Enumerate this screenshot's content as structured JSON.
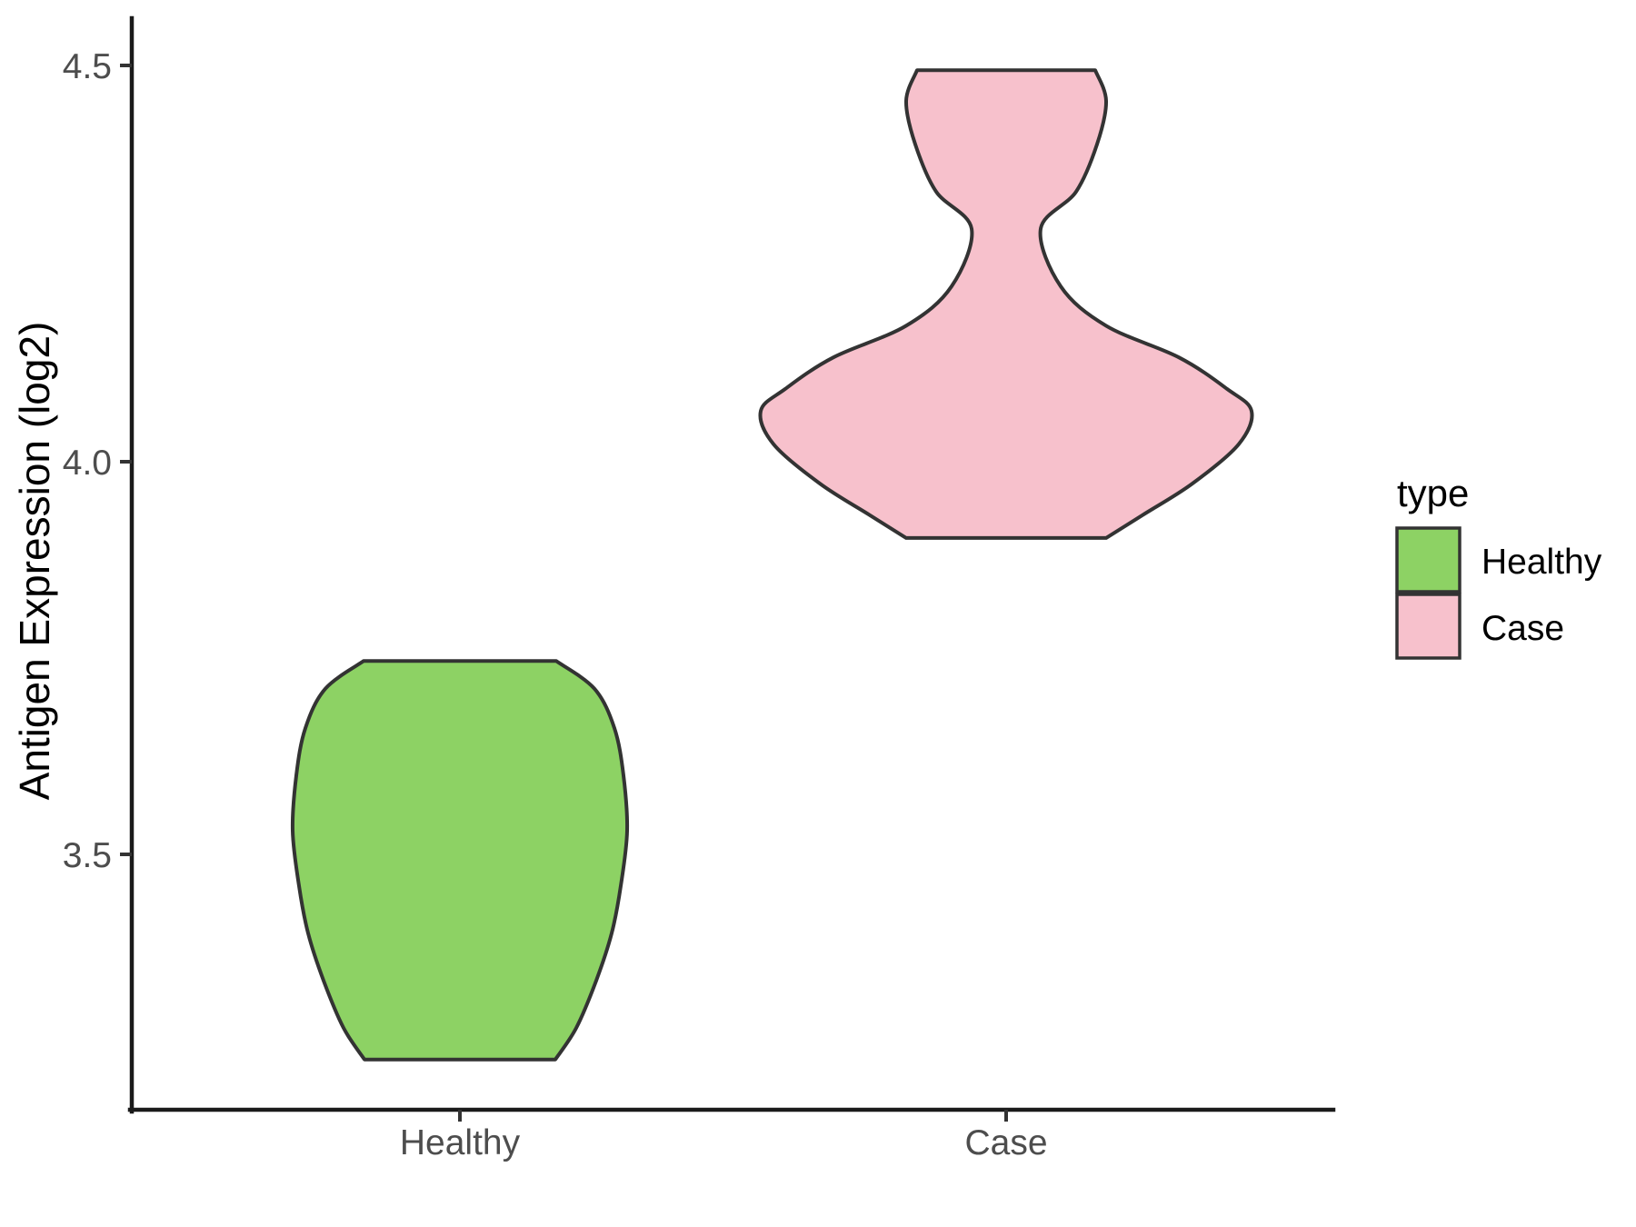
{
  "figure": {
    "background": "#ffffff",
    "y_axis": {
      "title": "Antigen Expression (log2)",
      "ticks": [
        "4.5",
        "4.0",
        "3.5"
      ]
    },
    "x_axis": {
      "categories": [
        "Healthy",
        "Case"
      ]
    },
    "legend": {
      "title": "type",
      "entries": [
        {
          "label": "Healthy",
          "color": "#8dd264"
        },
        {
          "label": "Case",
          "color": "#f7c1cc"
        }
      ]
    },
    "colors": {
      "violin_outline": "#333333",
      "axis_line": "#1a1a1a",
      "tick_text": "#4d4d4d"
    }
  },
  "chart_data": {
    "type": "violin",
    "title": "",
    "xlabel": "",
    "ylabel": "Antigen Expression (log2)",
    "categories": [
      "Healthy",
      "Case"
    ],
    "y_ticks": [
      3.5,
      4.0,
      4.5
    ],
    "ylim": [
      3.18,
      4.56
    ],
    "legend_title": "type",
    "legend_position": "right",
    "grid": false,
    "outline_color": "#333333",
    "series": [
      {
        "name": "Healthy",
        "fill": "#8dd264",
        "range": [
          3.24,
          3.75
        ],
        "peak_density_at": 3.53,
        "shape": "single broad mode, flat truncated top and bottom",
        "profile_value_halfwidth": [
          [
            3.745,
            106
          ],
          [
            3.71,
            148
          ],
          [
            3.66,
            170
          ],
          [
            3.6,
            180
          ],
          [
            3.53,
            184
          ],
          [
            3.46,
            177
          ],
          [
            3.4,
            167
          ],
          [
            3.34,
            150
          ],
          [
            3.28,
            128
          ],
          [
            3.24,
            105
          ]
        ]
      },
      {
        "name": "Case",
        "fill": "#f7c1cc",
        "range": [
          3.9,
          4.49
        ],
        "peak_density_at": 4.06,
        "secondary_mode_at": 4.46,
        "neck_at": 4.29,
        "shape": "bimodal: small upper lobe near 4.45-4.5, narrow neck near 4.29, large lower lobe peaking near 4.06",
        "profile_value_halfwidth": [
          [
            4.494,
            98
          ],
          [
            4.455,
            110
          ],
          [
            4.4,
            100
          ],
          [
            4.34,
            77
          ],
          [
            4.293,
            38
          ],
          [
            4.22,
            60
          ],
          [
            4.17,
            110
          ],
          [
            4.13,
            190
          ],
          [
            4.09,
            243
          ],
          [
            4.062,
            270
          ],
          [
            4.02,
            256
          ],
          [
            3.97,
            205
          ],
          [
            3.93,
            150
          ],
          [
            3.901,
            110
          ]
        ]
      }
    ]
  }
}
